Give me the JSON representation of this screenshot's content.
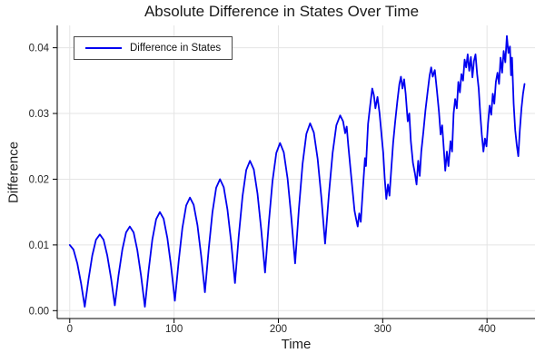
{
  "chart_data": {
    "type": "line",
    "title": "Absolute Difference in States Over Time",
    "xlabel": "Time",
    "ylabel": "Difference",
    "grid": true,
    "legend": {
      "position": "top-left",
      "entries": [
        {
          "label": "Difference in States",
          "color": "#0000f0"
        }
      ]
    },
    "xlim": [
      -12,
      446
    ],
    "ylim": [
      -0.0012,
      0.0434
    ],
    "xticks": {
      "values": [
        0,
        100,
        200,
        300,
        400
      ],
      "labels": [
        "0",
        "100",
        "200",
        "300",
        "400"
      ]
    },
    "yticks": {
      "values": [
        0,
        0.01,
        0.02,
        0.03,
        0.04
      ],
      "labels": [
        "0.00",
        "0.01",
        "0.02",
        "0.03",
        "0.04"
      ]
    },
    "line_width": 1.8,
    "series": [
      {
        "name": "Difference in States",
        "color": "#0000f0",
        "points": [
          [
            0,
            0.01
          ],
          [
            3.6,
            0.0093
          ],
          [
            7.2,
            0.0072
          ],
          [
            10.8,
            0.0042
          ],
          [
            14.4,
            0.0006
          ],
          [
            18,
            0.0048
          ],
          [
            21.6,
            0.0084
          ],
          [
            25.2,
            0.0108
          ],
          [
            28.8,
            0.0116
          ],
          [
            32.4,
            0.0108
          ],
          [
            36,
            0.0084
          ],
          [
            39.6,
            0.0049
          ],
          [
            43.2,
            0.0008
          ],
          [
            46.8,
            0.0054
          ],
          [
            50.4,
            0.0093
          ],
          [
            54,
            0.0119
          ],
          [
            57.6,
            0.0128
          ],
          [
            61.2,
            0.0119
          ],
          [
            64.8,
            0.0092
          ],
          [
            68.4,
            0.0053
          ],
          [
            72,
            0.0006
          ],
          [
            75.6,
            0.0061
          ],
          [
            79.2,
            0.0108
          ],
          [
            82.8,
            0.0139
          ],
          [
            86.4,
            0.015
          ],
          [
            90,
            0.014
          ],
          [
            93.6,
            0.011
          ],
          [
            97.2,
            0.0067
          ],
          [
            100.8,
            0.0015
          ],
          [
            104.4,
            0.0075
          ],
          [
            108,
            0.0126
          ],
          [
            111.6,
            0.016
          ],
          [
            115.2,
            0.0172
          ],
          [
            118.8,
            0.0161
          ],
          [
            122.4,
            0.013
          ],
          [
            126,
            0.0083
          ],
          [
            129.6,
            0.0028
          ],
          [
            133.2,
            0.0094
          ],
          [
            136.8,
            0.015
          ],
          [
            140.4,
            0.0187
          ],
          [
            144,
            0.02
          ],
          [
            147.6,
            0.0188
          ],
          [
            151.2,
            0.0154
          ],
          [
            154.8,
            0.0103
          ],
          [
            158.4,
            0.0042
          ],
          [
            162,
            0.0113
          ],
          [
            165.6,
            0.0174
          ],
          [
            169.2,
            0.0214
          ],
          [
            172.8,
            0.0228
          ],
          [
            176.4,
            0.0215
          ],
          [
            180,
            0.0178
          ],
          [
            183.6,
            0.0123
          ],
          [
            187.2,
            0.0058
          ],
          [
            190.8,
            0.0133
          ],
          [
            194.4,
            0.0197
          ],
          [
            198,
            0.024
          ],
          [
            201.6,
            0.0255
          ],
          [
            205.2,
            0.0241
          ],
          [
            208.8,
            0.0201
          ],
          [
            212.4,
            0.0142
          ],
          [
            216,
            0.0072
          ],
          [
            219.6,
            0.0154
          ],
          [
            223.2,
            0.0223
          ],
          [
            226.8,
            0.0269
          ],
          [
            230.4,
            0.0285
          ],
          [
            234,
            0.0271
          ],
          [
            237.6,
            0.0231
          ],
          [
            241.2,
            0.0172
          ],
          [
            244.8,
            0.0102
          ],
          [
            248.4,
            0.0177
          ],
          [
            252,
            0.024
          ],
          [
            255.6,
            0.0282
          ],
          [
            259.2,
            0.0297
          ],
          [
            262,
            0.0288
          ],
          [
            264,
            0.027
          ],
          [
            265.5,
            0.028
          ],
          [
            267,
            0.0252
          ],
          [
            269,
            0.0218
          ],
          [
            271,
            0.0185
          ],
          [
            273,
            0.0152
          ],
          [
            274.5,
            0.014
          ],
          [
            276,
            0.0128
          ],
          [
            277.5,
            0.0148
          ],
          [
            279,
            0.0135
          ],
          [
            281,
            0.0185
          ],
          [
            283,
            0.0232
          ],
          [
            284,
            0.022
          ],
          [
            286,
            0.0284
          ],
          [
            288,
            0.0312
          ],
          [
            290,
            0.0338
          ],
          [
            291.5,
            0.0328
          ],
          [
            293,
            0.0308
          ],
          [
            295,
            0.0325
          ],
          [
            297,
            0.03
          ],
          [
            299,
            0.0265
          ],
          [
            300.5,
            0.024
          ],
          [
            302,
            0.02
          ],
          [
            303.5,
            0.017
          ],
          [
            305,
            0.0192
          ],
          [
            306.5,
            0.0175
          ],
          [
            308,
            0.021
          ],
          [
            310,
            0.0255
          ],
          [
            312,
            0.0288
          ],
          [
            314,
            0.0318
          ],
          [
            316,
            0.0345
          ],
          [
            317.5,
            0.0356
          ],
          [
            319,
            0.0338
          ],
          [
            320.5,
            0.0352
          ],
          [
            322,
            0.033
          ],
          [
            324,
            0.0288
          ],
          [
            325.5,
            0.03
          ],
          [
            327,
            0.0258
          ],
          [
            329,
            0.0225
          ],
          [
            331,
            0.0208
          ],
          [
            332.5,
            0.0192
          ],
          [
            334,
            0.0228
          ],
          [
            335.5,
            0.0205
          ],
          [
            337,
            0.0242
          ],
          [
            339,
            0.0272
          ],
          [
            341,
            0.0305
          ],
          [
            343,
            0.0332
          ],
          [
            345,
            0.0358
          ],
          [
            346.5,
            0.037
          ],
          [
            348,
            0.0356
          ],
          [
            350,
            0.0366
          ],
          [
            352,
            0.0335
          ],
          [
            354,
            0.0302
          ],
          [
            355.5,
            0.0268
          ],
          [
            357,
            0.0282
          ],
          [
            358.5,
            0.0248
          ],
          [
            360,
            0.0213
          ],
          [
            361.5,
            0.0242
          ],
          [
            363,
            0.022
          ],
          [
            365,
            0.0258
          ],
          [
            366.5,
            0.0242
          ],
          [
            368,
            0.03
          ],
          [
            369.5,
            0.0322
          ],
          [
            371,
            0.0308
          ],
          [
            372.5,
            0.0348
          ],
          [
            374,
            0.0332
          ],
          [
            375.5,
            0.036
          ],
          [
            377,
            0.035
          ],
          [
            378.5,
            0.0382
          ],
          [
            380,
            0.037
          ],
          [
            381.5,
            0.039
          ],
          [
            383,
            0.0365
          ],
          [
            384.5,
            0.0386
          ],
          [
            386,
            0.0355
          ],
          [
            387.5,
            0.038
          ],
          [
            389,
            0.039
          ],
          [
            390.5,
            0.036
          ],
          [
            392,
            0.0338
          ],
          [
            393.5,
            0.03
          ],
          [
            395,
            0.0268
          ],
          [
            396.5,
            0.0242
          ],
          [
            398,
            0.0262
          ],
          [
            399.5,
            0.025
          ],
          [
            401,
            0.0285
          ],
          [
            402.5,
            0.0312
          ],
          [
            404,
            0.0298
          ],
          [
            405.5,
            0.033
          ],
          [
            407,
            0.0315
          ],
          [
            408.5,
            0.0348
          ],
          [
            410,
            0.0362
          ],
          [
            411.5,
            0.0345
          ],
          [
            413,
            0.0385
          ],
          [
            414.5,
            0.0362
          ],
          [
            416,
            0.0395
          ],
          [
            417.5,
            0.0378
          ],
          [
            419,
            0.0418
          ],
          [
            420.5,
            0.0392
          ],
          [
            422,
            0.0402
          ],
          [
            423,
            0.0358
          ],
          [
            424,
            0.0385
          ],
          [
            425.5,
            0.0315
          ],
          [
            427,
            0.0275
          ],
          [
            428.5,
            0.0252
          ],
          [
            430,
            0.0235
          ],
          [
            431.5,
            0.0275
          ],
          [
            433,
            0.0308
          ],
          [
            434.5,
            0.033
          ],
          [
            436,
            0.0345
          ]
        ]
      }
    ],
    "colors": {
      "line": "#0000f0",
      "grid": "#e4e4e4",
      "spine": "#000000",
      "title": "#191919",
      "tick_label": "#262626",
      "legend_border": "#4a4a4a",
      "background": "#ffffff"
    }
  }
}
